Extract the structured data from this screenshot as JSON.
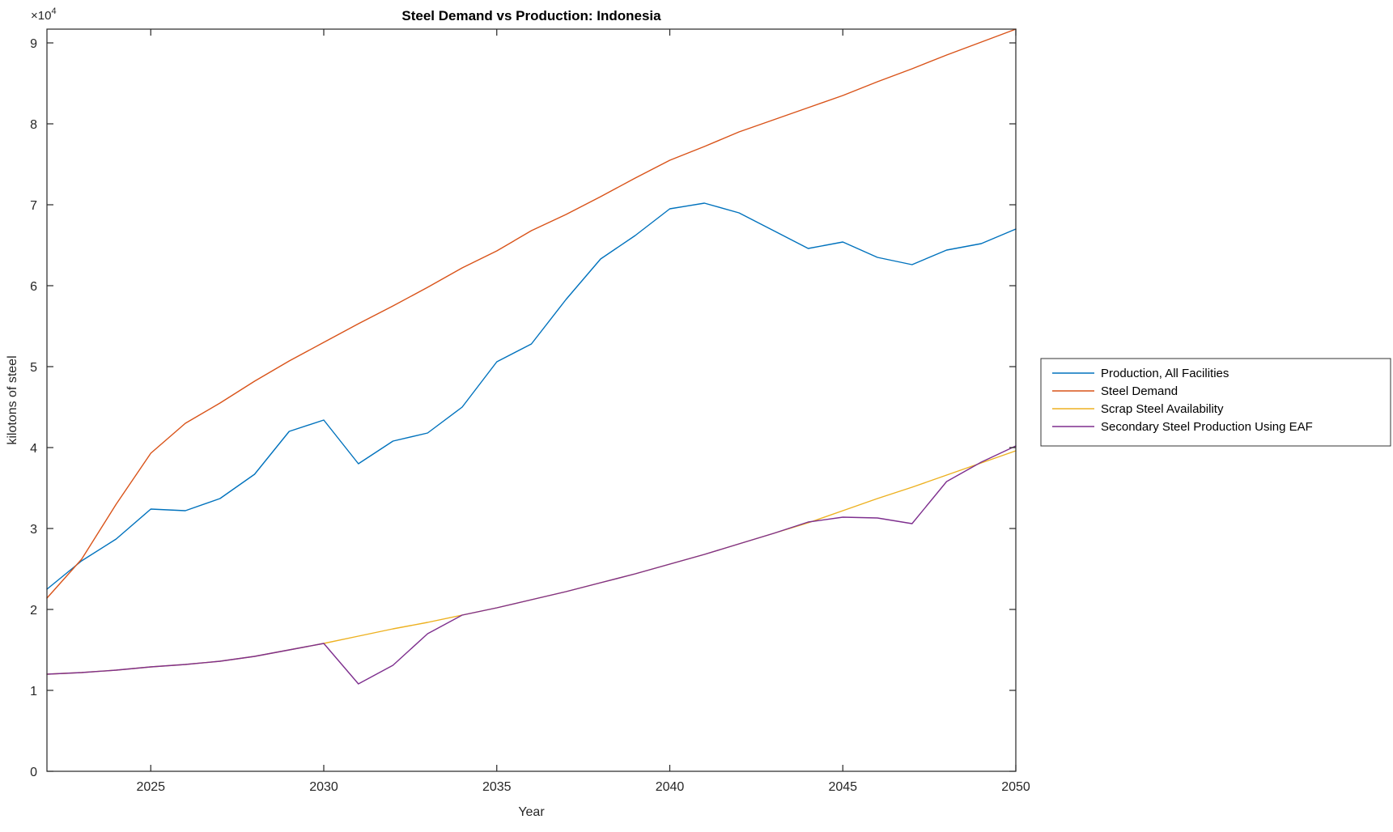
{
  "chart_data": {
    "type": "line",
    "title": "Steel Demand vs Production: Indonesia",
    "xlabel": "Year",
    "ylabel": "kilotons of steel",
    "y_axis_multiplier": "×10⁴",
    "xlim": [
      2022,
      2050
    ],
    "ylim": [
      0,
      91700
    ],
    "x_ticks": [
      2025,
      2030,
      2035,
      2040,
      2045,
      2050
    ],
    "y_ticks": [
      0,
      10000,
      20000,
      30000,
      40000,
      50000,
      60000,
      70000,
      80000,
      90000
    ],
    "y_tick_labels": [
      "0",
      "1",
      "2",
      "3",
      "4",
      "5",
      "6",
      "7",
      "8",
      "9"
    ],
    "grid": false,
    "legend_position": "right-outside",
    "x": [
      2022,
      2023,
      2024,
      2025,
      2026,
      2027,
      2028,
      2029,
      2030,
      2031,
      2032,
      2033,
      2034,
      2035,
      2036,
      2037,
      2038,
      2039,
      2040,
      2041,
      2042,
      2043,
      2044,
      2045,
      2046,
      2047,
      2048,
      2049,
      2050
    ],
    "series": [
      {
        "name": "Production, All Facilities",
        "color": "#0072BD",
        "values": [
          22500,
          26000,
          28700,
          32400,
          32200,
          33700,
          36700,
          42000,
          43400,
          38000,
          40800,
          41800,
          45000,
          50600,
          52800,
          58300,
          63300,
          66200,
          69500,
          70200,
          69000,
          66800,
          64600,
          65400,
          63500,
          62600,
          64400,
          65200,
          67000
        ]
      },
      {
        "name": "Steel Demand",
        "color": "#D95319",
        "values": [
          21400,
          26200,
          33000,
          39300,
          43000,
          45500,
          48200,
          50700,
          53000,
          55300,
          57500,
          59800,
          62200,
          64300,
          66800,
          68800,
          71000,
          73300,
          75500,
          77200,
          79000,
          80500,
          82000,
          83500,
          85200,
          86800,
          88500,
          90100,
          91700
        ]
      },
      {
        "name": "Scrap Steel Availability",
        "color": "#EDB120",
        "values": [
          12000,
          12200,
          12500,
          12900,
          13200,
          13600,
          14200,
          15000,
          15800,
          16700,
          17600,
          18400,
          19300,
          20200,
          21200,
          22200,
          23300,
          24400,
          25600,
          26800,
          28100,
          29400,
          30700,
          32200,
          33700,
          35100,
          36600,
          38100,
          39600
        ]
      },
      {
        "name": "Secondary Steel Production Using EAF",
        "color": "#7E2F8E",
        "values": [
          12000,
          12200,
          12500,
          12900,
          13200,
          13600,
          14200,
          15000,
          15800,
          10800,
          13100,
          17000,
          19300,
          20200,
          21200,
          22200,
          23300,
          24400,
          25600,
          26800,
          28100,
          29400,
          30800,
          31400,
          31300,
          30600,
          35800,
          38200,
          40200
        ]
      }
    ]
  },
  "layout_text": {
    "title": "Steel Demand vs Production: Indonesia",
    "xlabel": "Year",
    "ylabel": "kilotons of steel",
    "exponent": "×10"
  }
}
